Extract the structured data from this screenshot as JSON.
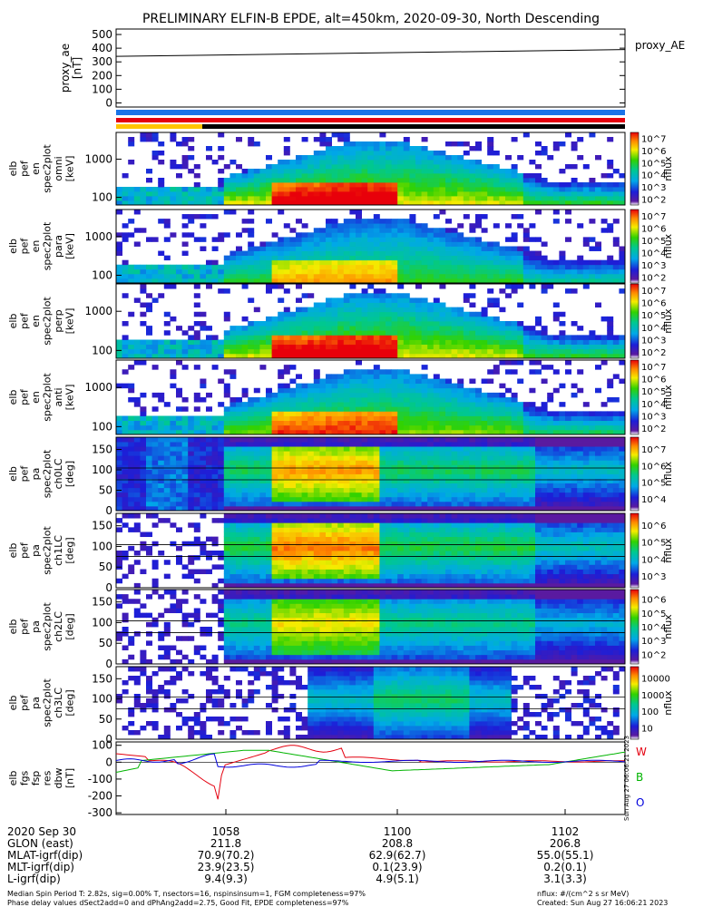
{
  "title": "PRELIMINARY ELFIN-B EPDE, alt=450km, 2020-09-30, North Descending",
  "colors": {
    "nominal_bar": "#1a73e8",
    "orbit_red": "#e4000f",
    "orbit_yellow": "#ffc400",
    "orbit_black": "#000000",
    "trace_red": "#e4000f",
    "trace_green": "#00b400",
    "trace_blue": "#0000dc"
  },
  "chart_data": [
    {
      "type": "line",
      "panel": "proxy_ae",
      "ylabel_lines": [
        "proxy_ae",
        "[nT]"
      ],
      "yticks": [
        "0",
        "100",
        "200",
        "300",
        "400",
        "500"
      ],
      "ylim": [
        -30,
        540
      ],
      "series": [
        {
          "name": "proxy_AE",
          "x": [
            0,
            1
          ],
          "values": [
            340,
            390
          ]
        }
      ]
    },
    {
      "type": "heatmap",
      "panel": "en",
      "ylabel_lines": [
        "elb",
        "pef",
        "en",
        "spec2plot",
        "omni",
        "[keV]"
      ],
      "yticks": [
        "100",
        "1000"
      ],
      "scale": "log",
      "colorbar": {
        "label": "nflux",
        "ticks": [
          "10^2",
          "10^3",
          "10^4",
          "10^5",
          "10^6",
          "10^7"
        ]
      }
    },
    {
      "type": "heatmap",
      "panel": "en_para",
      "ylabel_lines": [
        "elb",
        "pef",
        "en",
        "spec2plot",
        "para",
        "[keV]"
      ],
      "yticks": [
        "100",
        "1000"
      ],
      "scale": "log",
      "colorbar": {
        "label": "nflux",
        "ticks": [
          "10^2",
          "10^3",
          "10^4",
          "10^5",
          "10^6",
          "10^7"
        ]
      }
    },
    {
      "type": "heatmap",
      "panel": "en_perp",
      "ylabel_lines": [
        "elb",
        "pef",
        "en",
        "spec2plot",
        "perp",
        "[keV]"
      ],
      "yticks": [
        "100",
        "1000"
      ],
      "scale": "log",
      "colorbar": {
        "label": "nflux",
        "ticks": [
          "10^2",
          "10^3",
          "10^4",
          "10^5",
          "10^6",
          "10^7"
        ]
      }
    },
    {
      "type": "heatmap",
      "panel": "en_anti",
      "ylabel_lines": [
        "elb",
        "pef",
        "en",
        "spec2plot",
        "anti",
        "[keV]"
      ],
      "yticks": [
        "100",
        "1000"
      ],
      "scale": "log",
      "colorbar": {
        "label": "nflux",
        "ticks": [
          "10^2",
          "10^3",
          "10^4",
          "10^5",
          "10^6",
          "10^7"
        ]
      }
    },
    {
      "type": "heatmap",
      "panel": "pa_ch0",
      "ylabel_lines": [
        "elb",
        "pef",
        "pa",
        "spec2plot",
        "ch0LC",
        "[deg]"
      ],
      "yticks": [
        "0",
        "50",
        "100",
        "150"
      ],
      "colorbar": {
        "label": "nflux",
        "ticks": [
          "10^4",
          "10^5",
          "10^6",
          "10^7"
        ]
      }
    },
    {
      "type": "heatmap",
      "panel": "pa_ch1",
      "ylabel_lines": [
        "elb",
        "pef",
        "pa",
        "spec2plot",
        "ch1LC",
        "[deg]"
      ],
      "yticks": [
        "0",
        "50",
        "100",
        "150"
      ],
      "colorbar": {
        "label": "nflux",
        "ticks": [
          "10^3",
          "10^4",
          "10^5",
          "10^6"
        ]
      }
    },
    {
      "type": "heatmap",
      "panel": "pa_ch2",
      "ylabel_lines": [
        "elb",
        "pef",
        "pa",
        "spec2plot",
        "ch2LC",
        "[deg]"
      ],
      "yticks": [
        "0",
        "50",
        "100",
        "150"
      ],
      "colorbar": {
        "label": "nflux",
        "ticks": [
          "10^2",
          "10^3",
          "10^4",
          "10^5",
          "10^6"
        ]
      }
    },
    {
      "type": "heatmap",
      "panel": "pa_ch3",
      "ylabel_lines": [
        "elb",
        "pef",
        "pa",
        "spec2plot",
        "ch3LC",
        "[deg]"
      ],
      "yticks": [
        "0",
        "50",
        "100",
        "150"
      ],
      "colorbar": {
        "label": "nflux",
        "ticks": [
          "10",
          "100",
          "1000",
          "10000"
        ]
      }
    },
    {
      "type": "line",
      "panel": "dbw",
      "ylabel_lines": [
        "elb",
        "fgs",
        "fsp",
        "res",
        "dbw",
        "[nT]"
      ],
      "yticks": [
        "-300",
        "-200",
        "-100",
        "0",
        "100"
      ],
      "ylim": [
        -310,
        120
      ],
      "legend": [
        "W",
        "B",
        "O"
      ]
    }
  ],
  "footer": {
    "xaxis": {
      "date": "2020 Sep 30",
      "labels": [
        "GLON (east)",
        "MLAT-igrf(dip)",
        "MLT-igrf(dip)",
        "L-igrf(dip)"
      ],
      "columns": [
        {
          "time": "1058",
          "values": [
            "211.8",
            "70.9(70.2)",
            "23.9(23.5)",
            "9.4(9.3)"
          ]
        },
        {
          "time": "1100",
          "values": [
            "208.8",
            "62.9(62.7)",
            "0.1(23.9)",
            "4.9(5.1)"
          ]
        },
        {
          "time": "1102",
          "values": [
            "206.8",
            "55.0(55.1)",
            "0.2(0.1)",
            "3.1(3.3)"
          ]
        }
      ]
    },
    "note1": "Median Spin Period T: 2.82s, sig=0.00% T, nsectors=16, nspinsinsum=1, FGM completeness=97%",
    "note2": "Phase delay values dSect2add=0 and dPhAng2add=2.75, Good Fit, EPDE completeness=97%",
    "units": "nflux: #/(cm^2 s sr MeV)",
    "created": "Created: Sun Aug 27 16:06:21 2023",
    "side_stamp": "Sun Aug 27 06:06:21 2023"
  }
}
